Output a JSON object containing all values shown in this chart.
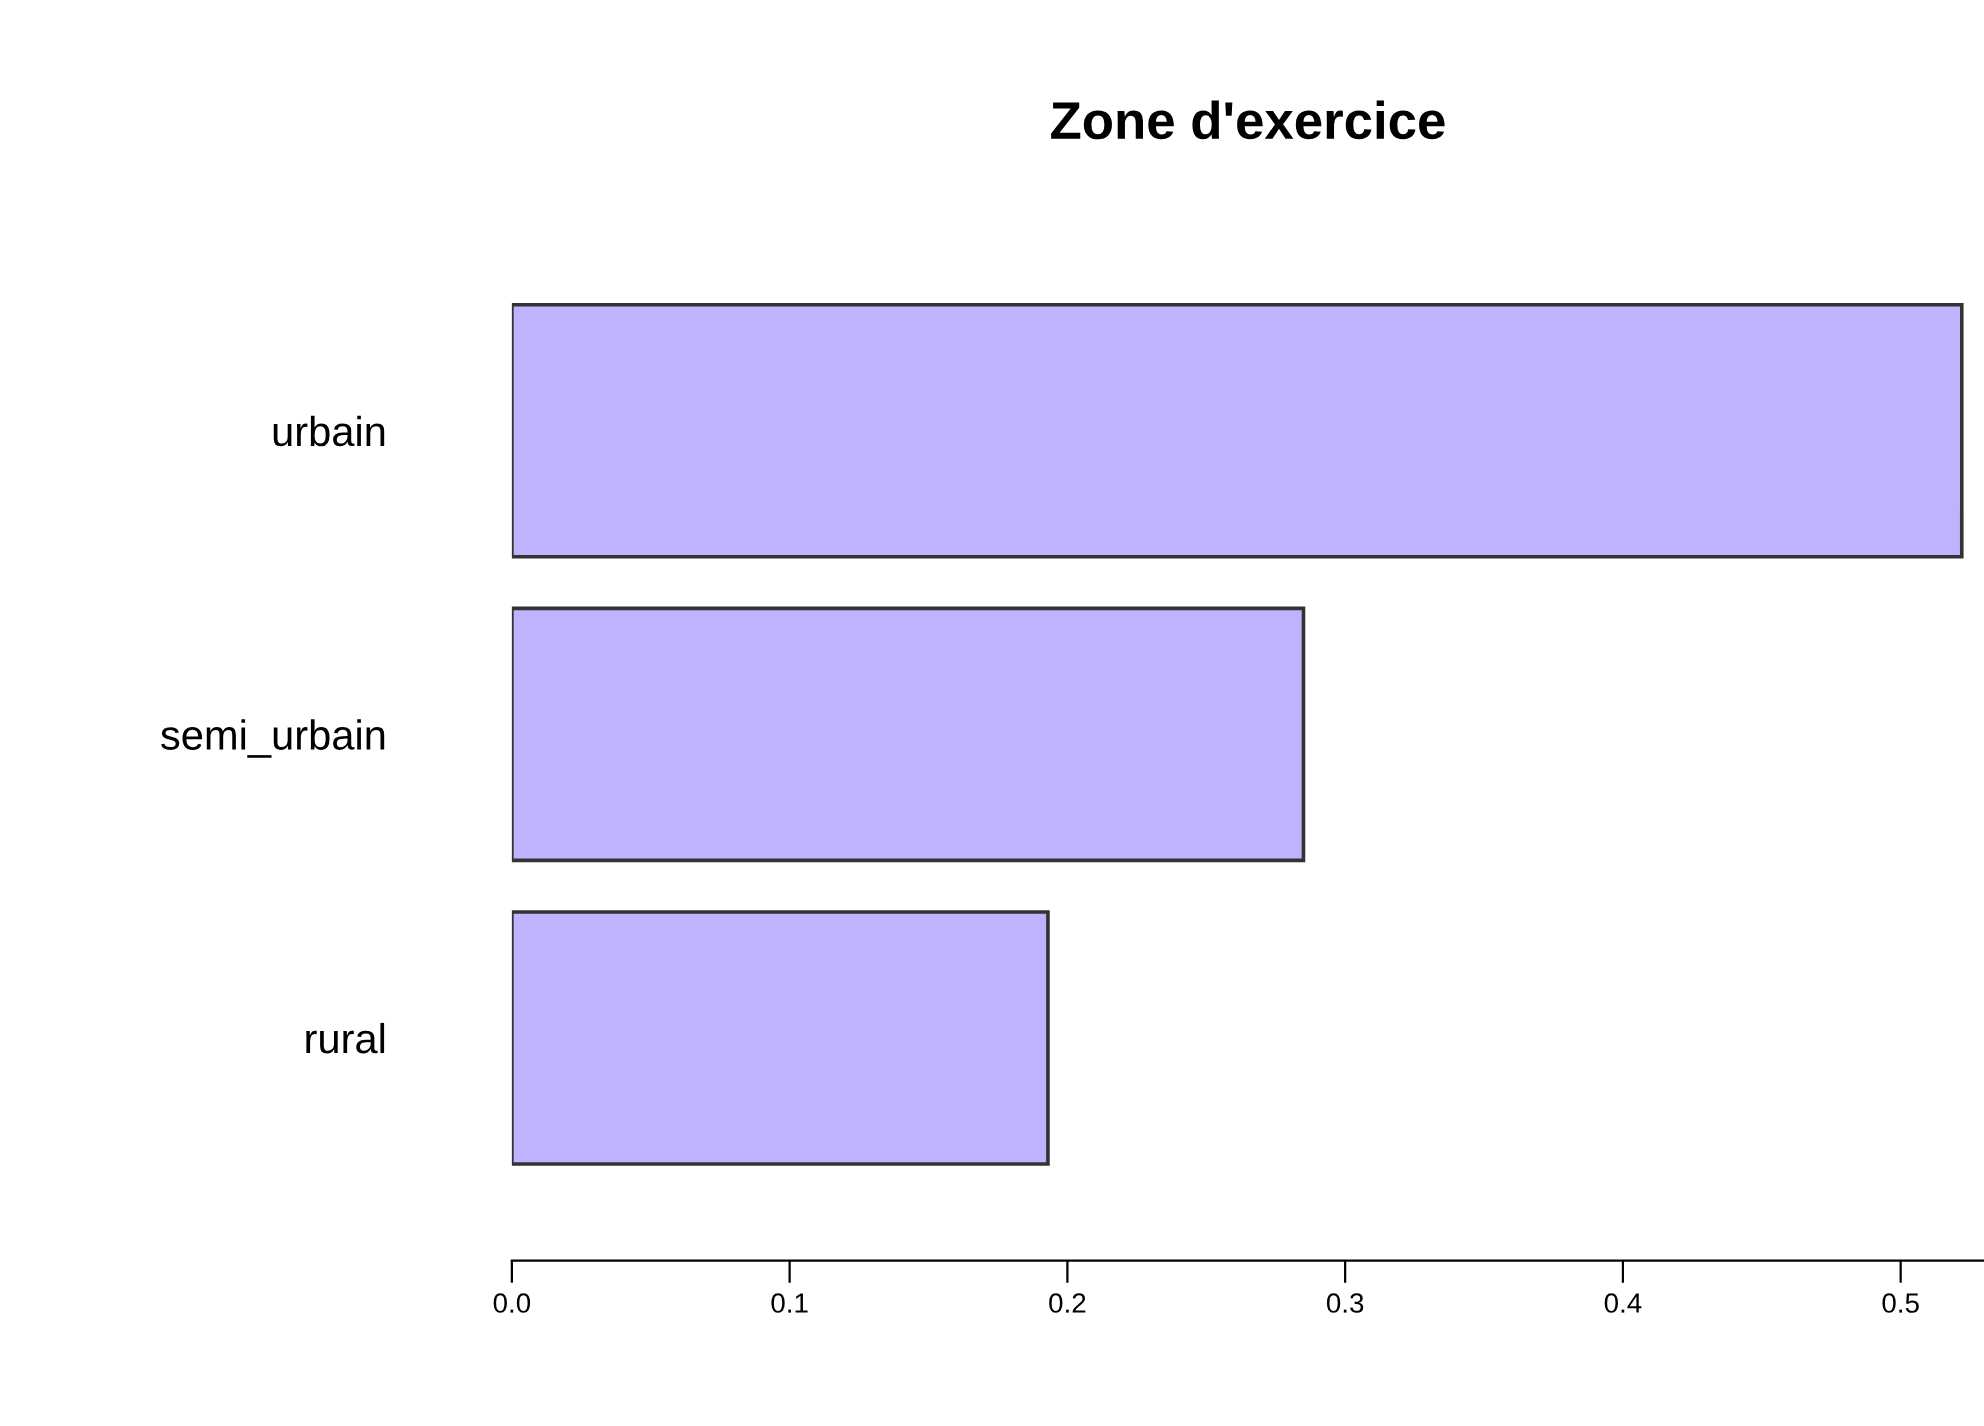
{
  "chart_data": {
    "type": "bar",
    "title": "Zone d'exercice",
    "orientation": "horizontal",
    "categories": [
      "urbain",
      "semi_urbain",
      "rural"
    ],
    "values": [
      0.522,
      0.285,
      0.193
    ],
    "color": "#bdb3ff",
    "xlim": [
      0,
      0.53
    ],
    "xticks": [
      {
        "value": 0,
        "label": "0.0"
      },
      0.1,
      0.2,
      0.3,
      0.4,
      0.5
    ],
    "grid": false,
    "legend": false
  }
}
